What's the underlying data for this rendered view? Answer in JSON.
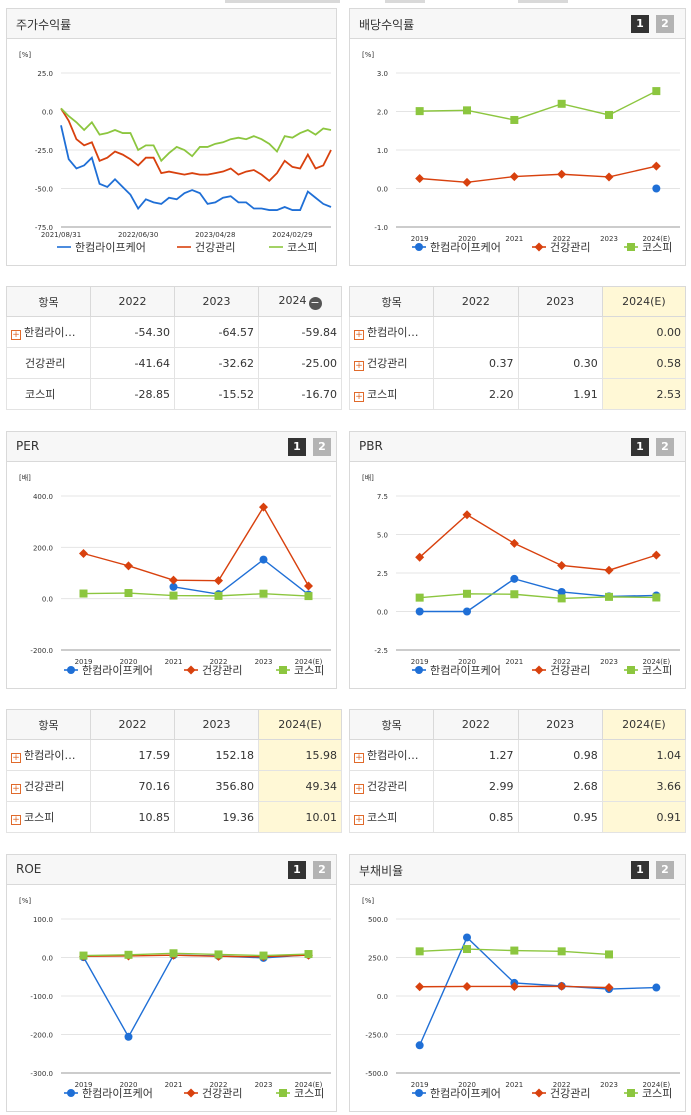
{
  "colors": {
    "company": "#1f6fd6",
    "health": "#d8410e",
    "kospi": "#8cc63f"
  },
  "legend": [
    "한컴라이프케어",
    "건강관리",
    "코스피"
  ],
  "pager": [
    "1",
    "2"
  ],
  "charts": {
    "stock_return": {
      "title": "주가수익률",
      "unit": "[%]",
      "chart_data": {
        "type": "line",
        "x_ticks": [
          "2021/08/31",
          "2022/06/30",
          "2023/04/28",
          "2024/02/29"
        ],
        "y_ticks": [
          "25.0",
          "0.0",
          "-25.0",
          "-50.0",
          "-75.0"
        ],
        "ylim": [
          -75,
          25
        ],
        "series": [
          {
            "name": "한컴라이프케어",
            "values": [
              -9,
              -31,
              -37,
              -35,
              -30,
              -47,
              -49,
              -44,
              -49,
              -54,
              -63,
              -57,
              -59,
              -60,
              -56,
              -57,
              -53,
              -51,
              -53,
              -60,
              -59,
              -56,
              -55,
              -59,
              -59,
              -63,
              -63,
              -64,
              -64,
              -62,
              -64,
              -64,
              -52,
              -56,
              -60,
              -62
            ]
          },
          {
            "name": "건강관리",
            "values": [
              2,
              -6,
              -18,
              -22,
              -20,
              -32,
              -30,
              -26,
              -28,
              -31,
              -35,
              -30,
              -30,
              -40,
              -39,
              -40,
              -41,
              -40,
              -41,
              -41,
              -40,
              -39,
              -37,
              -41,
              -39,
              -38,
              -41,
              -45,
              -40,
              -32,
              -36,
              -37,
              -28,
              -37,
              -35,
              -25
            ]
          },
          {
            "name": "코스피",
            "values": [
              2,
              -3,
              -7,
              -12,
              -7,
              -15,
              -14,
              -12,
              -14,
              -14,
              -25,
              -22,
              -22,
              -32,
              -27,
              -23,
              -25,
              -29,
              -23,
              -23,
              -21,
              -20,
              -18,
              -17,
              -18,
              -16,
              -18,
              -21,
              -26,
              -16,
              -17,
              -14,
              -12,
              -15,
              -11,
              -12
            ]
          }
        ]
      }
    },
    "dividend": {
      "title": "배당수익률",
      "unit": "[%]",
      "chart_data": {
        "type": "line",
        "categories": [
          "2019",
          "2020",
          "2021",
          "2022",
          "2023",
          "2024(E)"
        ],
        "y_ticks": [
          "3.0",
          "2.0",
          "1.0",
          "0.0",
          "-1.0"
        ],
        "ylim": [
          -1,
          3
        ],
        "series": [
          {
            "name": "한컴라이프케어",
            "values": [
              null,
              null,
              null,
              null,
              null,
              0.0
            ]
          },
          {
            "name": "건강관리",
            "values": [
              0.26,
              0.16,
              0.31,
              0.37,
              0.3,
              0.58
            ]
          },
          {
            "name": "코스피",
            "values": [
              2.01,
              2.03,
              1.78,
              2.2,
              1.91,
              2.53
            ]
          }
        ]
      }
    },
    "per": {
      "title": "PER",
      "unit": "[배]",
      "chart_data": {
        "type": "line",
        "categories": [
          "2019",
          "2020",
          "2021",
          "2022",
          "2023",
          "2024(E)"
        ],
        "y_ticks": [
          "400.0",
          "200.0",
          "0.0",
          "-200.0"
        ],
        "ylim": [
          -200,
          400
        ],
        "series": [
          {
            "name": "한컴라이프케어",
            "values": [
              null,
              null,
              46,
              17.59,
              152.18,
              15.98
            ]
          },
          {
            "name": "건강관리",
            "values": [
              176,
              128,
              72,
              70.16,
              356.8,
              49.34
            ]
          },
          {
            "name": "코스피",
            "values": [
              20,
              22,
              12,
              10.85,
              19.36,
              10.01
            ]
          }
        ]
      }
    },
    "pbr": {
      "title": "PBR",
      "unit": "[배]",
      "chart_data": {
        "type": "line",
        "categories": [
          "2019",
          "2020",
          "2021",
          "2022",
          "2023",
          "2024(E)"
        ],
        "y_ticks": [
          "7.5",
          "5.0",
          "2.5",
          "0.0",
          "-2.5"
        ],
        "ylim": [
          -2.5,
          7.5
        ],
        "series": [
          {
            "name": "한컴라이프케어",
            "values": [
              0.0,
              0.0,
              2.12,
              1.27,
              0.98,
              1.04
            ]
          },
          {
            "name": "건강관리",
            "values": [
              3.52,
              6.28,
              4.42,
              2.99,
              2.68,
              3.66
            ]
          },
          {
            "name": "코스피",
            "values": [
              0.9,
              1.15,
              1.12,
              0.85,
              0.95,
              0.91
            ]
          }
        ]
      }
    },
    "roe": {
      "title": "ROE",
      "unit": "[%]",
      "chart_data": {
        "type": "line",
        "categories": [
          "2019",
          "2020",
          "2021",
          "2022",
          "2023",
          "2024(E)"
        ],
        "y_ticks": [
          "100.0",
          "0.0",
          "-100.0",
          "-200.0",
          "-300.0"
        ],
        "ylim": [
          -300,
          100
        ],
        "series": [
          {
            "name": "한컴라이프케어",
            "values": [
              1,
              -206,
              6,
              4,
              -1,
              7
            ]
          },
          {
            "name": "건강관리",
            "values": [
              3,
              4,
              6,
              3,
              2,
              6
            ]
          },
          {
            "name": "코스피",
            "values": [
              5,
              7,
              11,
              8,
              5,
              9
            ]
          }
        ]
      }
    },
    "debt": {
      "title": "부채비율",
      "unit": "[%]",
      "chart_data": {
        "type": "line",
        "categories": [
          "2019",
          "2020",
          "2021",
          "2022",
          "2023",
          "2024(E)"
        ],
        "y_ticks": [
          "500.0",
          "250.0",
          "0.0",
          "-250.0",
          "-500.0"
        ],
        "ylim": [
          -500,
          500
        ],
        "series": [
          {
            "name": "한컴라이프케어",
            "values": [
              -320,
              380,
              85,
              65,
              45,
              55
            ]
          },
          {
            "name": "건강관리",
            "values": [
              60,
              62,
              62,
              63,
              55,
              null
            ]
          },
          {
            "name": "코스피",
            "values": [
              290,
              305,
              295,
              290,
              270,
              null
            ]
          }
        ]
      }
    }
  },
  "tables": {
    "stock_return": {
      "headers": [
        "항목",
        "2022",
        "2023",
        "2024"
      ],
      "rows": [
        {
          "name": "한컴라이…",
          "plus": true,
          "values": [
            "-54.30",
            "-64.57",
            "-59.84"
          ]
        },
        {
          "name": "건강관리",
          "plus": false,
          "values": [
            "-41.64",
            "-32.62",
            "-25.00"
          ]
        },
        {
          "name": "코스피",
          "plus": false,
          "values": [
            "-28.85",
            "-15.52",
            "-16.70"
          ]
        }
      ]
    },
    "dividend": {
      "headers": [
        "항목",
        "2022",
        "2023",
        "2024(E)"
      ],
      "rows": [
        {
          "name": "한컴라이…",
          "plus": true,
          "values": [
            "",
            "",
            "0.00"
          ]
        },
        {
          "name": "건강관리",
          "plus": true,
          "values": [
            "0.37",
            "0.30",
            "0.58"
          ]
        },
        {
          "name": "코스피",
          "plus": true,
          "values": [
            "2.20",
            "1.91",
            "2.53"
          ]
        }
      ]
    },
    "per": {
      "headers": [
        "항목",
        "2022",
        "2023",
        "2024(E)"
      ],
      "rows": [
        {
          "name": "한컴라이…",
          "plus": true,
          "values": [
            "17.59",
            "152.18",
            "15.98"
          ]
        },
        {
          "name": "건강관리",
          "plus": true,
          "values": [
            "70.16",
            "356.80",
            "49.34"
          ]
        },
        {
          "name": "코스피",
          "plus": true,
          "values": [
            "10.85",
            "19.36",
            "10.01"
          ]
        }
      ]
    },
    "pbr": {
      "headers": [
        "항목",
        "2022",
        "2023",
        "2024(E)"
      ],
      "rows": [
        {
          "name": "한컴라이…",
          "plus": true,
          "values": [
            "1.27",
            "0.98",
            "1.04"
          ]
        },
        {
          "name": "건강관리",
          "plus": true,
          "values": [
            "2.99",
            "2.68",
            "3.66"
          ]
        },
        {
          "name": "코스피",
          "plus": true,
          "values": [
            "0.85",
            "0.95",
            "0.91"
          ]
        }
      ]
    }
  }
}
